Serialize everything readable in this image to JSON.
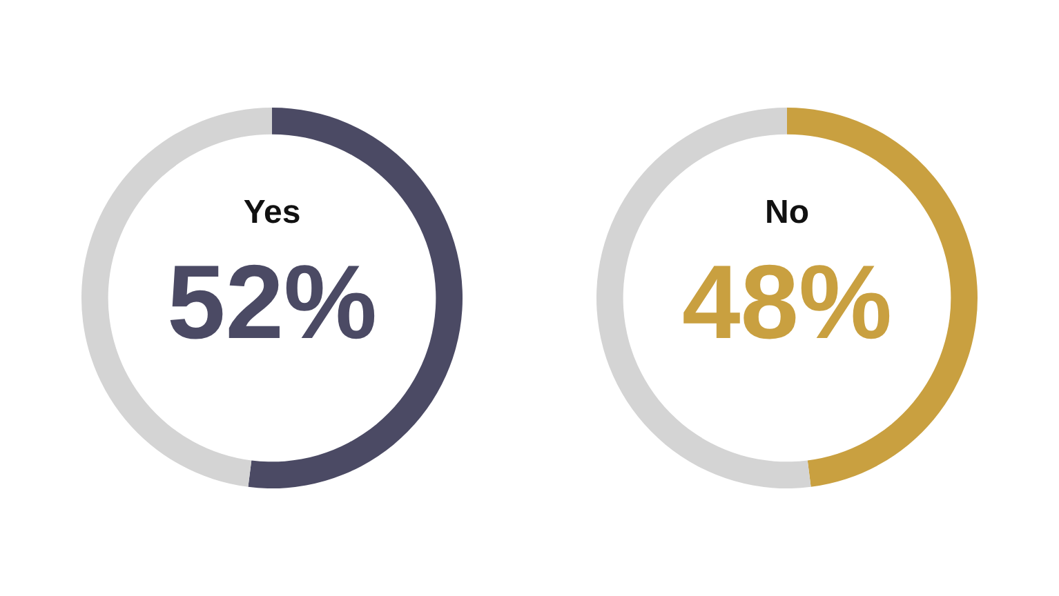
{
  "chart_data": [
    {
      "type": "donut",
      "categories": [
        "Yes",
        null
      ],
      "values": [
        52,
        48
      ],
      "colors": [
        "#4b4a64",
        "#d4d4d4"
      ],
      "value_labels": [
        "52%",
        null
      ]
    },
    {
      "type": "donut",
      "categories": [
        "No",
        null
      ],
      "values": [
        48,
        52
      ],
      "colors": [
        "#c9a040",
        "#d4d4d4"
      ],
      "value_labels": [
        "48%",
        null
      ]
    }
  ]
}
